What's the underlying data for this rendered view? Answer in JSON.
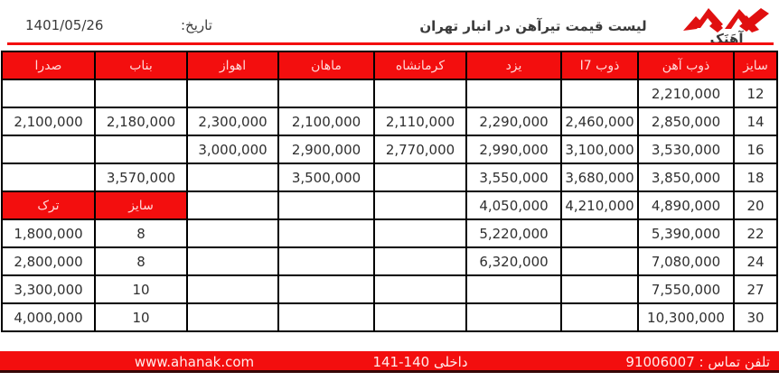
{
  "page": {
    "date_label": "تاریخ:",
    "date_value": "1401/05/26",
    "title": "لیست قیمت تیرآهن در انبار تهران",
    "logo_wordmark": "آهَنَک"
  },
  "colors": {
    "accent_red": "#f30e0e",
    "header_text": "#ffd9d9",
    "cell_text": "#2f2f2f",
    "border": "#000000",
    "footer_shadow": "#350606"
  },
  "table": {
    "columns": [
      {
        "key": "size",
        "label": "سایز"
      },
      {
        "key": "zob_ahan",
        "label": "ذوب آهن"
      },
      {
        "key": "zob_i7",
        "label": "ذوب I7"
      },
      {
        "key": "yazd",
        "label": "یزد"
      },
      {
        "key": "kermanshah",
        "label": "کرمانشاه"
      },
      {
        "key": "mahan",
        "label": "ماهان"
      },
      {
        "key": "ahvaz",
        "label": "اهواز"
      },
      {
        "key": "bonab",
        "label": "بناب"
      },
      {
        "key": "sadra",
        "label": "صدرا"
      }
    ],
    "rows": [
      {
        "size": "12",
        "zob_ahan": "2,210,000",
        "zob_i7": "",
        "yazd": "",
        "kermanshah": "",
        "mahan": "",
        "ahvaz": "",
        "bonab": "",
        "sadra": ""
      },
      {
        "size": "14",
        "zob_ahan": "2,850,000",
        "zob_i7": "2,460,000",
        "yazd": "2,290,000",
        "kermanshah": "2,110,000",
        "mahan": "2,100,000",
        "ahvaz": "2,300,000",
        "bonab": "2,180,000",
        "sadra": "2,100,000"
      },
      {
        "size": "16",
        "zob_ahan": "3,530,000",
        "zob_i7": "3,100,000",
        "yazd": "2,990,000",
        "kermanshah": "2,770,000",
        "mahan": "2,900,000",
        "ahvaz": "3,000,000",
        "bonab": "",
        "sadra": ""
      },
      {
        "size": "18",
        "zob_ahan": "3,850,000",
        "zob_i7": "3,680,000",
        "yazd": "3,550,000",
        "kermanshah": "",
        "mahan": "3,500,000",
        "ahvaz": "",
        "bonab": "3,570,000",
        "sadra": ""
      },
      {
        "size": "20",
        "zob_ahan": "4,890,000",
        "zob_i7": "4,210,000",
        "yazd": "4,050,000",
        "kermanshah": "",
        "mahan": "",
        "ahvaz": "",
        "bonab": "سایز",
        "sadra": "ترک"
      },
      {
        "size": "22",
        "zob_ahan": "5,390,000",
        "zob_i7": "",
        "yazd": "5,220,000",
        "kermanshah": "",
        "mahan": "",
        "ahvaz": "",
        "bonab": "8",
        "sadra": "1,800,000"
      },
      {
        "size": "24",
        "zob_ahan": "7,080,000",
        "zob_i7": "",
        "yazd": "6,320,000",
        "kermanshah": "",
        "mahan": "",
        "ahvaz": "",
        "bonab": "8",
        "sadra": "2,800,000"
      },
      {
        "size": "27",
        "zob_ahan": "7,550,000",
        "zob_i7": "",
        "yazd": "",
        "kermanshah": "",
        "mahan": "",
        "ahvaz": "",
        "bonab": "10",
        "sadra": "3,300,000"
      },
      {
        "size": "30",
        "zob_ahan": "10,300,000",
        "zob_i7": "",
        "yazd": "",
        "kermanshah": "",
        "mahan": "",
        "ahvaz": "",
        "bonab": "10",
        "sadra": "4,000,000"
      }
    ],
    "red_cells": [
      {
        "row": 4,
        "col": "bonab"
      },
      {
        "row": 4,
        "col": "sadra"
      }
    ],
    "column_widths": {
      "size": 48,
      "zob_ahan": 106,
      "zob_i7": 85,
      "yazd": 105,
      "kermanshah": 102,
      "mahan": 106,
      "ahvaz": 101,
      "bonab": 102,
      "sadra": 103
    }
  },
  "footer": {
    "website": "www.ahanak.com",
    "extension": "داخلی 140-141",
    "phone": "تلفن تماس : 91006007"
  }
}
